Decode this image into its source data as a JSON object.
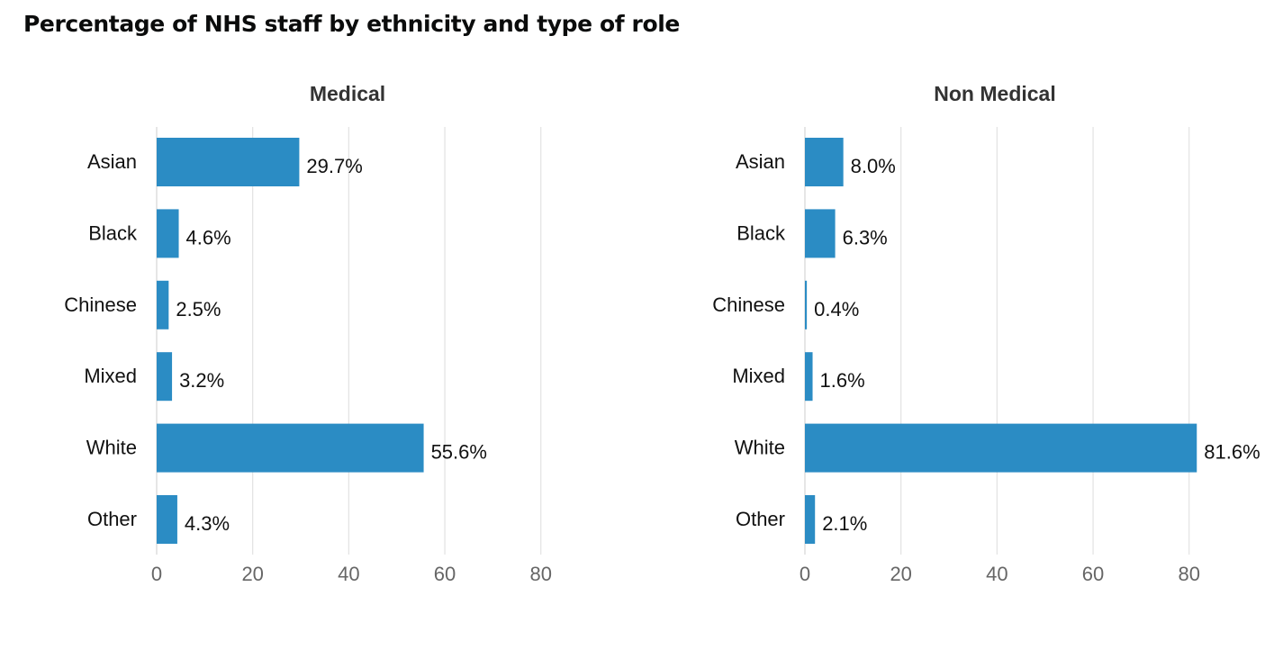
{
  "title": "Percentage of NHS staff by ethnicity and type of role",
  "colors": {
    "bar": "#2b8cc4",
    "grid": "#e2e2e2",
    "tick_text": "#666666",
    "panel_title": "#333333"
  },
  "chart_data": [
    {
      "type": "bar",
      "orientation": "horizontal",
      "title": "Medical",
      "categories": [
        "Asian",
        "Black",
        "Chinese",
        "Mixed",
        "White",
        "Other"
      ],
      "values": [
        29.7,
        4.6,
        2.5,
        3.2,
        55.6,
        4.3
      ],
      "value_labels": [
        "29.7%",
        "4.6%",
        "2.5%",
        "3.2%",
        "55.6%",
        "4.3%"
      ],
      "xlim": [
        0,
        80
      ],
      "xticks": [
        0,
        20,
        40,
        60,
        80
      ],
      "grid": true,
      "legend": "none"
    },
    {
      "type": "bar",
      "orientation": "horizontal",
      "title": "Non Medical",
      "categories": [
        "Asian",
        "Black",
        "Chinese",
        "Mixed",
        "White",
        "Other"
      ],
      "values": [
        8.0,
        6.3,
        0.4,
        1.6,
        81.6,
        2.1
      ],
      "value_labels": [
        "8.0%",
        "6.3%",
        "0.4%",
        "1.6%",
        "81.6%",
        "2.1%"
      ],
      "xlim": [
        0,
        80
      ],
      "xticks": [
        0,
        20,
        40,
        60,
        80
      ],
      "grid": true,
      "legend": "none"
    }
  ]
}
